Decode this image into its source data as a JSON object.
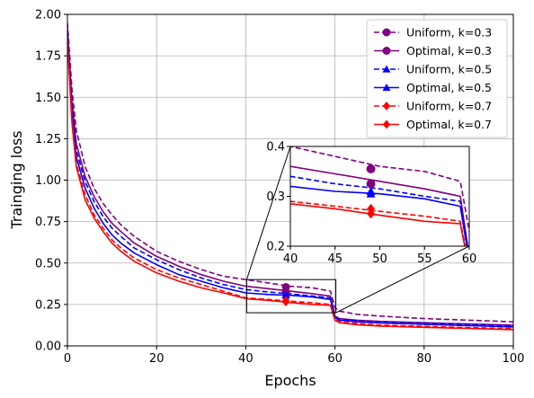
{
  "chart_data": {
    "type": "line",
    "xlabel": "Epochs",
    "ylabel": "Trainging loss",
    "xlim": [
      0,
      100
    ],
    "ylim": [
      0,
      2.0
    ],
    "xticks": [
      "0",
      "20",
      "40",
      "60",
      "80",
      "100"
    ],
    "yticks": [
      "0.00",
      "0.25",
      "0.50",
      "0.75",
      "1.00",
      "1.25",
      "1.50",
      "1.75",
      "2.00"
    ],
    "grid": true,
    "legend_position": "top-right",
    "x": [
      0,
      1,
      2,
      4,
      6,
      8,
      10,
      12,
      15,
      20,
      25,
      30,
      35,
      40,
      45,
      50,
      55,
      59,
      60,
      61,
      65,
      70,
      80,
      90,
      100
    ],
    "series": [
      {
        "name": "Uniform, k=0.3",
        "color": "#800080",
        "dash": true,
        "marker": "circle",
        "values": [
          1.95,
          1.55,
          1.3,
          1.08,
          0.95,
          0.86,
          0.79,
          0.73,
          0.66,
          0.57,
          0.51,
          0.46,
          0.42,
          0.4,
          0.38,
          0.36,
          0.35,
          0.33,
          0.23,
          0.21,
          0.19,
          0.18,
          0.165,
          0.155,
          0.145
        ]
      },
      {
        "name": "Optimal, k=0.3",
        "color": "#800080",
        "dash": false,
        "marker": "circle",
        "values": [
          1.92,
          1.48,
          1.22,
          1.02,
          0.9,
          0.81,
          0.74,
          0.69,
          0.62,
          0.54,
          0.48,
          0.43,
          0.39,
          0.36,
          0.345,
          0.33,
          0.315,
          0.3,
          0.18,
          0.165,
          0.155,
          0.148,
          0.14,
          0.132,
          0.125
        ]
      },
      {
        "name": "Uniform, k=0.5",
        "color": "#0000ff",
        "dash": true,
        "marker": "triangle",
        "values": [
          1.9,
          1.45,
          1.18,
          0.99,
          0.87,
          0.78,
          0.71,
          0.66,
          0.59,
          0.52,
          0.46,
          0.41,
          0.37,
          0.34,
          0.325,
          0.315,
          0.3,
          0.29,
          0.175,
          0.16,
          0.15,
          0.142,
          0.135,
          0.128,
          0.12
        ]
      },
      {
        "name": "Optimal, k=0.5",
        "color": "#0000ff",
        "dash": false,
        "marker": "triangle",
        "values": [
          1.88,
          1.4,
          1.14,
          0.95,
          0.83,
          0.74,
          0.67,
          0.62,
          0.56,
          0.49,
          0.43,
          0.39,
          0.35,
          0.32,
          0.31,
          0.305,
          0.295,
          0.28,
          0.17,
          0.155,
          0.145,
          0.138,
          0.13,
          0.122,
          0.115
        ]
      },
      {
        "name": "Uniform, k=0.7",
        "color": "#ff0000",
        "dash": true,
        "marker": "diamond",
        "values": [
          1.86,
          1.38,
          1.1,
          0.91,
          0.79,
          0.71,
          0.64,
          0.59,
          0.53,
          0.46,
          0.41,
          0.37,
          0.33,
          0.29,
          0.28,
          0.27,
          0.26,
          0.25,
          0.16,
          0.145,
          0.135,
          0.125,
          0.118,
          0.11,
          0.105
        ]
      },
      {
        "name": "Optimal, k=0.7",
        "color": "#ff0000",
        "dash": false,
        "marker": "diamond",
        "values": [
          1.85,
          1.35,
          1.08,
          0.88,
          0.77,
          0.69,
          0.62,
          0.57,
          0.51,
          0.44,
          0.39,
          0.35,
          0.32,
          0.285,
          0.275,
          0.262,
          0.25,
          0.245,
          0.155,
          0.14,
          0.128,
          0.12,
          0.112,
          0.105,
          0.098
        ]
      }
    ],
    "markers": [
      {
        "series": 0,
        "x": 49,
        "y": 0.355
      },
      {
        "series": 1,
        "x": 49,
        "y": 0.325
      },
      {
        "series": 2,
        "x": 49,
        "y": 0.31
      },
      {
        "series": 3,
        "x": 49,
        "y": 0.305
      },
      {
        "series": 4,
        "x": 49,
        "y": 0.275
      },
      {
        "series": 5,
        "x": 49,
        "y": 0.265
      }
    ],
    "inset": {
      "xlim": [
        40,
        60
      ],
      "ylim": [
        0.2,
        0.4
      ],
      "xticks": [
        "40",
        "45",
        "50",
        "55",
        "60"
      ],
      "yticks": [
        "0.2",
        "0.3",
        "0.4"
      ]
    }
  }
}
